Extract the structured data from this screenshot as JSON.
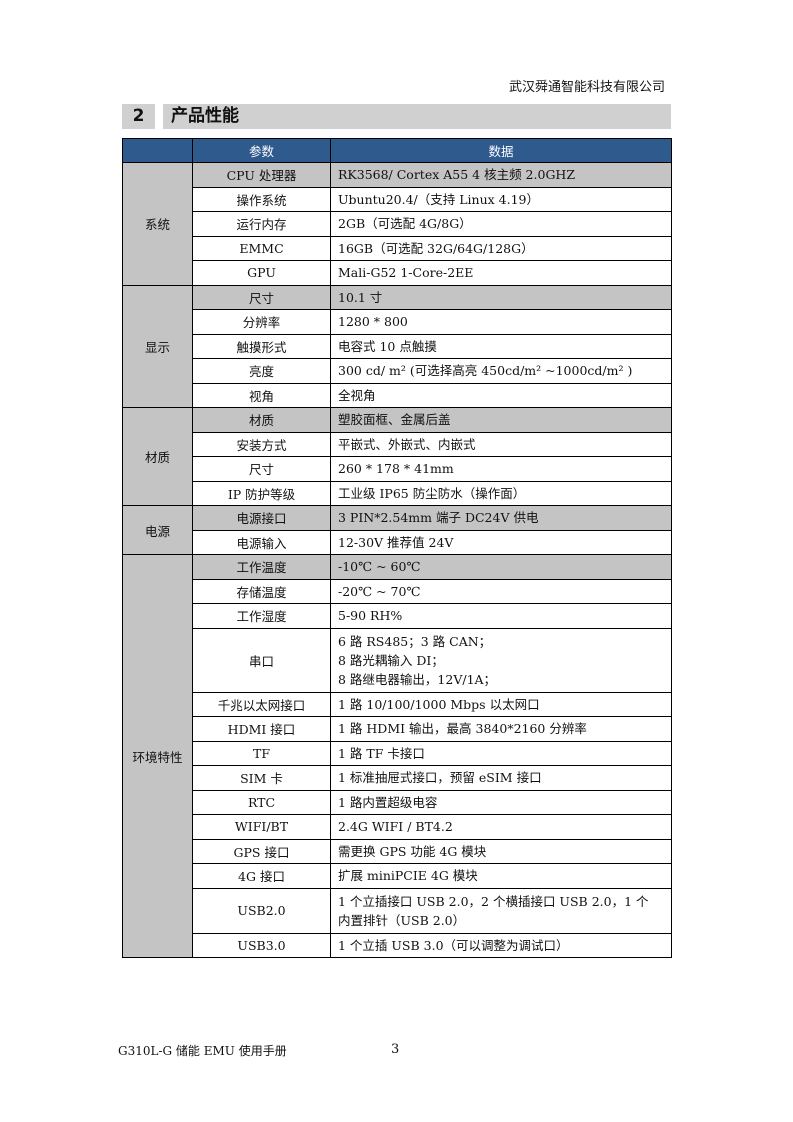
{
  "header": {
    "company": "武汉舜通智能科技有限公司"
  },
  "section": {
    "number": "2",
    "title": "产品性能"
  },
  "table": {
    "columns": [
      "",
      "参数",
      "数据"
    ],
    "groups": [
      {
        "name": "系统",
        "rows": [
          {
            "param": "CPU 处理器",
            "value": [
              "RK3568/ Cortex A55 4 核主频 2.0GHZ"
            ]
          },
          {
            "param": "操作系统",
            "value": [
              "Ubuntu20.4/（支持 Linux 4.19）"
            ]
          },
          {
            "param": "运行内存",
            "value": [
              "2GB（可选配 4G/8G）"
            ]
          },
          {
            "param": "EMMC",
            "value": [
              "16GB（可选配 32G/64G/128G）"
            ]
          },
          {
            "param": "GPU",
            "value": [
              "Mali-G52 1-Core-2EE"
            ]
          }
        ]
      },
      {
        "name": "显示",
        "rows": [
          {
            "param": "尺寸",
            "value": [
              "10.1 寸"
            ]
          },
          {
            "param": "分辨率",
            "value": [
              "1280 * 800"
            ]
          },
          {
            "param": "触摸形式",
            "value": [
              "电容式  10 点触摸"
            ]
          },
          {
            "param": "亮度",
            "value": [
              "300 cd/ m² (可选择高亮 450cd/m² ~1000cd/m² )"
            ]
          },
          {
            "param": "视角",
            "value": [
              "全视角"
            ]
          }
        ]
      },
      {
        "name": "材质",
        "rows": [
          {
            "param": "材质",
            "value": [
              "塑胶面框、金属后盖"
            ]
          },
          {
            "param": "安装方式",
            "value": [
              "平嵌式、外嵌式、内嵌式"
            ]
          },
          {
            "param": "尺寸",
            "value": [
              "260 * 178 * 41mm"
            ]
          },
          {
            "param": "IP 防护等级",
            "value": [
              "工业级 IP65 防尘防水（操作面）"
            ]
          }
        ]
      },
      {
        "name": "电源",
        "rows": [
          {
            "param": "电源接口",
            "value": [
              "3 PIN*2.54mm  端子    DC24V 供电"
            ]
          },
          {
            "param": "电源输入",
            "value": [
              "12-30V 推荐值 24V"
            ]
          }
        ]
      },
      {
        "name": "环境特性",
        "rows": [
          {
            "param": "工作温度",
            "value": [
              "-10℃  ~ 60℃"
            ]
          },
          {
            "param": "存储温度",
            "value": [
              "-20℃  ~ 70℃"
            ]
          },
          {
            "param": "工作湿度",
            "value": [
              "5-90 RH%"
            ]
          },
          {
            "param": "串口",
            "value": [
              "6 路 RS485；3 路 CAN；",
              "8 路光耦输入 DI；",
              "8 路继电器输出，12V/1A；"
            ]
          },
          {
            "param": "千兆以太网接口",
            "value": [
              "1 路 10/100/1000 Mbps 以太网口"
            ]
          },
          {
            "param": "HDMI 接口",
            "value": [
              "1 路 HDMI 输出，最高 3840*2160 分辨率"
            ]
          },
          {
            "param": "TF",
            "value": [
              "1 路 TF 卡接口"
            ]
          },
          {
            "param": "SIM 卡",
            "value": [
              "1 标准抽屉式接口，预留 eSIM 接口"
            ]
          },
          {
            "param": "RTC",
            "value": [
              "1 路内置超级电容"
            ]
          },
          {
            "param": "WIFI/BT",
            "value": [
              "2.4G WIFI / BT4.2"
            ]
          },
          {
            "param": "GPS 接口",
            "value": [
              "需更换 GPS 功能 4G 模块"
            ]
          },
          {
            "param": "4G 接口",
            "value": [
              "扩展 miniPCIE    4G 模块"
            ]
          },
          {
            "param": "USB2.0",
            "value": [
              "1  个立插接口 USB 2.0，2 个横插接口 USB 2.0，1  个",
              "内置排针（USB 2.0）"
            ]
          },
          {
            "param": "USB3.0",
            "value": [
              "1 个立插 USB 3.0（可以调整为调试口）"
            ]
          }
        ]
      }
    ]
  },
  "footer": {
    "doc_title": "G310L-G 储能 EMU 使用手册",
    "page_number": "3"
  },
  "colors": {
    "header_bg": "#2f5a8e",
    "highlight_gray": "#c4c4c4"
  }
}
